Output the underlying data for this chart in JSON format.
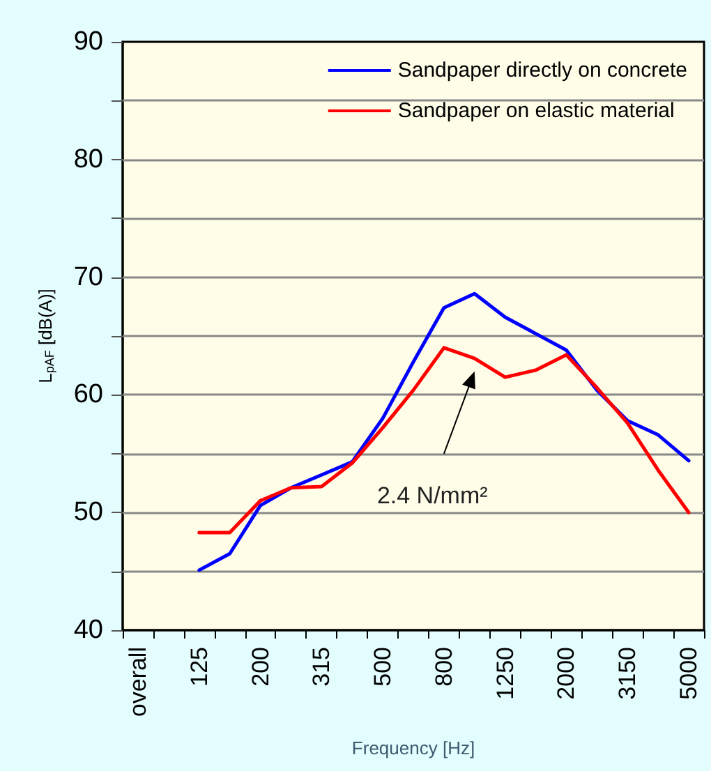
{
  "chart_data": {
    "type": "line",
    "xlabel": "Frequency [Hz]",
    "ylabel": "L$_{pAF}$ [dB(A)]",
    "categories": [
      "overall",
      null,
      "125",
      null,
      "200",
      null,
      "315",
      null,
      "500",
      null,
      "800",
      null,
      "1250",
      null,
      "2000",
      null,
      "3150",
      null,
      "5000"
    ],
    "series": [
      {
        "name": "Sandpaper directly on concrete",
        "color": "#0000ff",
        "values": [
          null,
          null,
          45.1,
          46.5,
          50.6,
          52.1,
          53.2,
          54.3,
          58.0,
          62.8,
          67.4,
          68.6,
          66.6,
          65.2,
          63.8,
          60.4,
          57.8,
          56.6,
          54.4
        ]
      },
      {
        "name": "Sandpaper on elastic material",
        "color": "#ff0000",
        "values": [
          null,
          null,
          48.3,
          48.3,
          51.0,
          52.1,
          52.2,
          54.2,
          57.2,
          60.4,
          64.0,
          63.1,
          61.5,
          62.1,
          63.4,
          60.6,
          57.6,
          53.6,
          50.0
        ]
      }
    ],
    "ylim": [
      40,
      90
    ],
    "yticks": [
      40,
      {
        "value": 45,
        "label": null
      },
      50,
      {
        "value": 55,
        "label": null
      },
      60,
      {
        "value": 65,
        "label": null
      },
      70,
      {
        "value": 75,
        "label": null
      },
      80,
      {
        "value": 85,
        "label": null
      },
      90
    ],
    "grid": "y",
    "legend": "top right",
    "marker": "none",
    "line_style": "solid",
    "annotations": [
      "2.4 N/mm²"
    ]
  }
}
